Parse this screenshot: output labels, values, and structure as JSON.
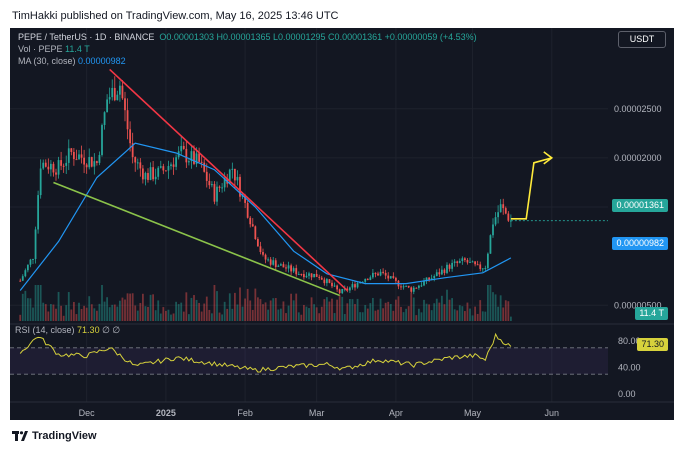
{
  "header": {
    "text": "TimHakki published on TradingView.com, May 16, 2025 13:46 UTC"
  },
  "legend": {
    "symbol": "PEPE / TetherUS · 1D · BINANCE",
    "ohlc": "O0.00001303 H0.00001365 L0.00001295 C0.00001361 +0.00000059 (+4.53%)",
    "vol_label": "Vol · PEPE",
    "vol_value": "11.4 T",
    "ma_label": "MA (30, close)",
    "ma_value": "0.00000982"
  },
  "usdt_label": "USDT",
  "tags": {
    "price": "0.00001361",
    "ma": "0.00000982",
    "volume": "11.4 T",
    "rsi": "71.30"
  },
  "rsi_legend": {
    "label": "RSI (14, close)",
    "value": "71.30",
    "extra": "∅ ∅"
  },
  "colors": {
    "background": "#131722",
    "up": "#26a69a",
    "down": "#ef5350",
    "ma": "#2196f3",
    "resistance": "#f23645",
    "support": "#8bc34a",
    "arrow": "#ffeb3b",
    "rsi": "#d7d23c"
  },
  "footer": {
    "brand": "TradingView"
  },
  "chart_data": [
    {
      "type": "candlestick",
      "price_axis_ticks": [
        "0.00002500",
        "0.00002000",
        "0.00001500",
        "0.00000500"
      ],
      "ylim": [
        3.5e-06,
        3.2e-05
      ],
      "x_ticks": [
        "Dec",
        "2025",
        "Feb",
        "Mar",
        "Apr",
        "May",
        "Jun"
      ],
      "x_tick_dates": [
        "2024-12-01",
        "2025-01-01",
        "2025-02-01",
        "2025-03-01",
        "2025-04-01",
        "2025-05-01",
        "2025-06-01"
      ],
      "approx_close_path": [
        {
          "date": "2024-11-05",
          "value": 7.5e-06
        },
        {
          "date": "2024-11-10",
          "value": 1e-05
        },
        {
          "date": "2024-11-13",
          "value": 1.95e-05
        },
        {
          "date": "2024-11-20",
          "value": 1.9e-05
        },
        {
          "date": "2024-11-25",
          "value": 2.05e-05
        },
        {
          "date": "2024-12-05",
          "value": 1.95e-05
        },
        {
          "date": "2024-12-09",
          "value": 2.6e-05
        },
        {
          "date": "2024-12-14",
          "value": 2.75e-05
        },
        {
          "date": "2024-12-19",
          "value": 2e-05
        },
        {
          "date": "2024-12-24",
          "value": 1.82e-05
        },
        {
          "date": "2024-12-30",
          "value": 1.85e-05
        },
        {
          "date": "2025-01-07",
          "value": 2.05e-05
        },
        {
          "date": "2025-01-14",
          "value": 1.95e-05
        },
        {
          "date": "2025-01-20",
          "value": 1.62e-05
        },
        {
          "date": "2025-01-27",
          "value": 1.9e-05
        },
        {
          "date": "2025-02-03",
          "value": 1.38e-05
        },
        {
          "date": "2025-02-08",
          "value": 9.8e-06
        },
        {
          "date": "2025-02-15",
          "value": 9e-06
        },
        {
          "date": "2025-02-22",
          "value": 8.3e-06
        },
        {
          "date": "2025-03-02",
          "value": 8e-06
        },
        {
          "date": "2025-03-10",
          "value": 6.3e-06
        },
        {
          "date": "2025-03-13",
          "value": 6.6e-06
        },
        {
          "date": "2025-03-20",
          "value": 7.8e-06
        },
        {
          "date": "2025-03-26",
          "value": 8.3e-06
        },
        {
          "date": "2025-04-01",
          "value": 7.3e-06
        },
        {
          "date": "2025-04-07",
          "value": 6.6e-06
        },
        {
          "date": "2025-04-15",
          "value": 7.8e-06
        },
        {
          "date": "2025-04-22",
          "value": 9e-06
        },
        {
          "date": "2025-04-28",
          "value": 9.5e-06
        },
        {
          "date": "2025-05-03",
          "value": 8.8e-06
        },
        {
          "date": "2025-05-06",
          "value": 9e-06
        },
        {
          "date": "2025-05-09",
          "value": 1.35e-05
        },
        {
          "date": "2025-05-12",
          "value": 1.5e-05
        },
        {
          "date": "2025-05-16",
          "value": 1.361e-05
        }
      ],
      "moving_average": {
        "name": "MA (30, close)",
        "points": [
          {
            "date": "2024-11-05",
            "value": 6.5e-06
          },
          {
            "date": "2024-11-20",
            "value": 1.15e-05
          },
          {
            "date": "2024-12-05",
            "value": 1.8e-05
          },
          {
            "date": "2024-12-20",
            "value": 2.15e-05
          },
          {
            "date": "2025-01-05",
            "value": 2.05e-05
          },
          {
            "date": "2025-01-20",
            "value": 1.88e-05
          },
          {
            "date": "2025-02-05",
            "value": 1.5e-05
          },
          {
            "date": "2025-02-20",
            "value": 1.05e-05
          },
          {
            "date": "2025-03-05",
            "value": 8.2e-06
          },
          {
            "date": "2025-03-20",
            "value": 7.2e-06
          },
          {
            "date": "2025-04-05",
            "value": 7.2e-06
          },
          {
            "date": "2025-04-20",
            "value": 7.8e-06
          },
          {
            "date": "2025-05-05",
            "value": 8.3e-06
          },
          {
            "date": "2025-05-16",
            "value": 9.82e-06
          }
        ]
      },
      "annotations": [
        {
          "type": "trendline",
          "role": "resistance",
          "from": {
            "date": "2024-12-10",
            "value": 2.9e-05
          },
          "to": {
            "date": "2025-03-13",
            "value": 6.5e-06
          }
        },
        {
          "type": "trendline",
          "role": "support",
          "from": {
            "date": "2024-11-18",
            "value": 1.75e-05
          },
          "to": {
            "date": "2025-03-10",
            "value": 6e-06
          }
        },
        {
          "type": "arrow",
          "path": [
            {
              "date": "2025-05-16",
              "value": 1.38e-05
            },
            {
              "date": "2025-05-22",
              "value": 1.38e-05
            },
            {
              "date": "2025-05-25",
              "value": 1.95e-05
            },
            {
              "date": "2025-06-01",
              "value": 2e-05
            }
          ]
        }
      ]
    },
    {
      "type": "bar",
      "name": "Vol · PEPE",
      "last_value": "11.4 T",
      "note": "volume bars under the price pane, colored by candle direction"
    },
    {
      "type": "line",
      "name": "RSI (14, close)",
      "y_ticks": [
        "80.00",
        "40.00",
        "0.00"
      ],
      "ylim": [
        0,
        100
      ],
      "bands": [
        70,
        30
      ],
      "last_value": 71.3,
      "approx_path": [
        {
          "date": "2024-11-05",
          "value": 62
        },
        {
          "date": "2024-11-12",
          "value": 88
        },
        {
          "date": "2024-11-20",
          "value": 60
        },
        {
          "date": "2024-12-01",
          "value": 58
        },
        {
          "date": "2024-12-10",
          "value": 70
        },
        {
          "date": "2024-12-20",
          "value": 42
        },
        {
          "date": "2025-01-05",
          "value": 55
        },
        {
          "date": "2025-01-20",
          "value": 46
        },
        {
          "date": "2025-02-05",
          "value": 36
        },
        {
          "date": "2025-02-20",
          "value": 42
        },
        {
          "date": "2025-03-05",
          "value": 45
        },
        {
          "date": "2025-03-12",
          "value": 38
        },
        {
          "date": "2025-03-25",
          "value": 52
        },
        {
          "date": "2025-04-08",
          "value": 44
        },
        {
          "date": "2025-04-22",
          "value": 55
        },
        {
          "date": "2025-05-02",
          "value": 58
        },
        {
          "date": "2025-05-06",
          "value": 52
        },
        {
          "date": "2025-05-10",
          "value": 88
        },
        {
          "date": "2025-05-16",
          "value": 71.3
        }
      ]
    }
  ]
}
